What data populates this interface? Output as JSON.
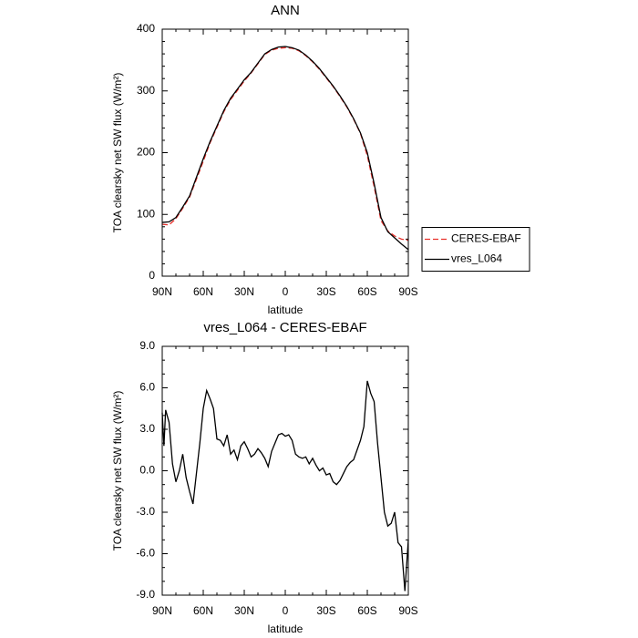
{
  "chart_data": [
    {
      "type": "line",
      "title": "ANN",
      "xlabel": "latitude",
      "ylabel": "TOA clearsky net SW flux (W/m²)",
      "x": [
        90,
        85,
        80,
        75,
        70,
        65,
        60,
        55,
        50,
        45,
        40,
        35,
        30,
        25,
        20,
        15,
        10,
        5,
        0,
        -5,
        -10,
        -15,
        -20,
        -25,
        -30,
        -35,
        -40,
        -45,
        -50,
        -55,
        -60,
        -65,
        -70,
        -75,
        -80,
        -85,
        -90
      ],
      "series": [
        {
          "name": "CERES-EBAF",
          "color": "#e8302b",
          "linestyle": "dashed",
          "values": [
            84,
            83,
            93,
            110,
            128,
            157,
            186,
            216,
            241,
            266,
            286,
            301,
            316,
            329,
            344,
            359,
            366,
            369,
            370,
            369,
            365,
            357,
            347,
            335,
            321,
            307,
            291,
            274,
            254,
            231,
            195,
            145,
            90,
            73,
            65,
            60,
            58
          ]
        },
        {
          "name": "vres_L064",
          "color": "#000000",
          "linestyle": "solid",
          "values": [
            87,
            88,
            95,
            112,
            130,
            160,
            190,
            218,
            243,
            268,
            288,
            303,
            318,
            330,
            345,
            360,
            367,
            371,
            372,
            370,
            366,
            358,
            348,
            336,
            322,
            308,
            292,
            275,
            255,
            232,
            200,
            150,
            95,
            72,
            62,
            52,
            43
          ]
        }
      ],
      "xlim": [
        90,
        -90
      ],
      "xticks": [
        {
          "value": 90,
          "label": "90N"
        },
        {
          "value": 60,
          "label": "60N"
        },
        {
          "value": 30,
          "label": "30N"
        },
        0,
        {
          "value": -30,
          "label": "30S"
        },
        {
          "value": -60,
          "label": "60S"
        },
        {
          "value": -90,
          "label": "90S"
        }
      ],
      "ylim": [
        0,
        400
      ],
      "yticks": [
        0,
        100,
        200,
        300,
        400
      ],
      "legend": "right"
    },
    {
      "type": "line",
      "title": "vres_L064 - CERES-EBAF",
      "xlabel": "latitude",
      "ylabel": "TOA clearsky net SW flux (W/m²)",
      "x": [
        90,
        88.75,
        87.5,
        85,
        82.5,
        80,
        77.5,
        75,
        72.5,
        70,
        67.5,
        65,
        62.5,
        60,
        57.5,
        55,
        52.5,
        50,
        47.5,
        45,
        42.5,
        40,
        37.5,
        35,
        32.5,
        30,
        27.5,
        25,
        22.5,
        20,
        17.5,
        15,
        12.5,
        10,
        7.5,
        5,
        2.5,
        0,
        -2.5,
        -5,
        -7.5,
        -10,
        -12.5,
        -15,
        -17.5,
        -20,
        -22.5,
        -25,
        -27.5,
        -30,
        -32.5,
        -35,
        -37.5,
        -40,
        -42.5,
        -45,
        -47.5,
        -50,
        -52.5,
        -55,
        -57.5,
        -60,
        -62.5,
        -65,
        -67.5,
        -70,
        -72.5,
        -75,
        -77.5,
        -80,
        -82.5,
        -85,
        -87.5,
        -90
      ],
      "values": [
        4.2,
        1.8,
        4.4,
        3.5,
        0.5,
        -0.8,
        0.0,
        1.2,
        -0.5,
        -1.5,
        -2.4,
        -0.2,
        2.0,
        4.5,
        5.8,
        5.2,
        4.5,
        2.3,
        2.2,
        1.8,
        2.6,
        1.2,
        1.5,
        0.8,
        1.8,
        2.1,
        1.6,
        1.0,
        1.2,
        1.6,
        1.3,
        0.9,
        0.3,
        1.4,
        2.0,
        2.6,
        2.7,
        2.5,
        2.6,
        2.2,
        1.2,
        1.0,
        0.9,
        1.0,
        0.5,
        0.9,
        0.4,
        0.0,
        0.2,
        -0.3,
        -0.2,
        -0.8,
        -1.0,
        -0.7,
        -0.2,
        0.3,
        0.6,
        0.8,
        1.5,
        2.2,
        3.2,
        6.5,
        5.6,
        5.0,
        2.0,
        -0.5,
        -3.0,
        -4.0,
        -3.8,
        -3.0,
        -5.2,
        -5.5,
        -8.7,
        -5.0
      ],
      "color": "#000000",
      "xlim": [
        90,
        -90
      ],
      "xticks": [
        {
          "value": 90,
          "label": "90N"
        },
        {
          "value": 60,
          "label": "60N"
        },
        {
          "value": 30,
          "label": "30N"
        },
        0,
        {
          "value": -30,
          "label": "30S"
        },
        {
          "value": -60,
          "label": "60S"
        },
        {
          "value": -90,
          "label": "90S"
        }
      ],
      "ylim": [
        -9,
        9
      ],
      "yticks": [
        {
          "value": -9,
          "label": "-9.0"
        },
        {
          "value": -6,
          "label": "-6.0"
        },
        {
          "value": -3,
          "label": "-3.0"
        },
        {
          "value": 0,
          "label": "0.0"
        },
        {
          "value": 3,
          "label": "3.0"
        },
        {
          "value": 6,
          "label": "6.0"
        },
        {
          "value": 9,
          "label": "9.0"
        }
      ]
    }
  ]
}
